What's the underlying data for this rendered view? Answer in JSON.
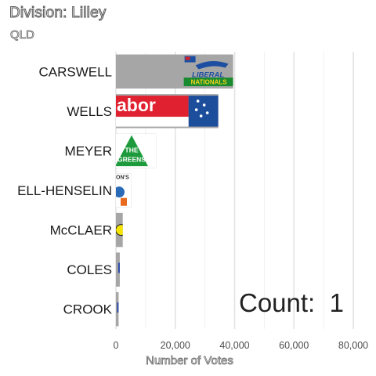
{
  "chart_data": {
    "type": "bar",
    "orientation": "horizontal",
    "title": "Division: Lilley",
    "subtitle": "QLD",
    "xlabel": "Number of Votes",
    "ylabel": "",
    "xlim": [
      0,
      80000
    ],
    "xticks": [
      0,
      20000,
      40000,
      60000,
      80000
    ],
    "tick_labels": [
      "0",
      "20,000",
      "40,000",
      "60,000",
      "80,000"
    ],
    "categories": [
      "CARSWELL",
      "WELLS",
      "MEYER",
      "ELL-HENSELIN",
      "McCLAER",
      "COLES",
      "CROOK"
    ],
    "values": [
      39500,
      34500,
      13500,
      5200,
      2300,
      1300,
      900
    ],
    "logos": [
      "liberal-nationals-logo",
      "labor-logo",
      "greens-logo",
      "one-nation-logo",
      "smiley-logo",
      "small-party-logo",
      "small-party-logo"
    ],
    "bar_color": "#a6a6a6",
    "grid": true,
    "legend": "none"
  },
  "annotation": {
    "count_label": "Count:",
    "count_value": "1"
  },
  "logo_text": {
    "liberal": "LIBERAL",
    "nationals": "NATIONALS",
    "labor": "abor",
    "greens_the": "THE",
    "greens": "GREENS",
    "one_nation": "ON'S"
  },
  "colors": {
    "liberal_blue": "#1c4fa1",
    "nationals_green": "#1a8a2e",
    "nationals_yellow": "#f2d21b",
    "labor_red": "#e0212f",
    "labor_blue": "#1d4e9c",
    "greens_green": "#1d9a3c",
    "one_nation_orange": "#e86a1e",
    "one_nation_blue": "#2a6bb8"
  }
}
